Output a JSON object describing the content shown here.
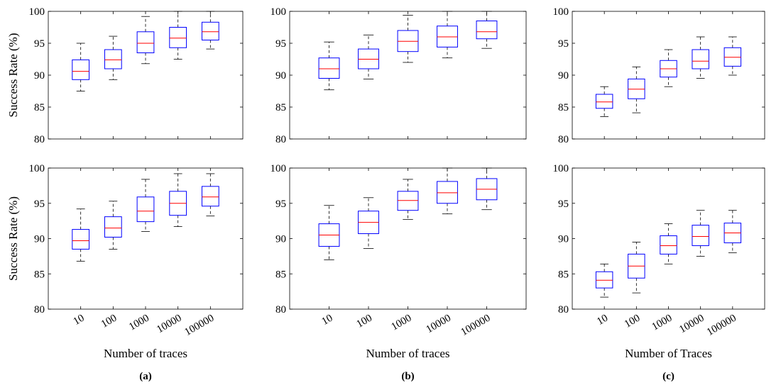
{
  "chart_data": [
    {
      "type": "box",
      "panel": "a-top",
      "categories": [
        "10",
        "100",
        "1000",
        "10000",
        "100000"
      ],
      "ylabel": "Success Rate (%)",
      "xlabel": "",
      "ylim": [
        80,
        100
      ],
      "yticks": [
        80,
        85,
        90,
        95,
        100
      ],
      "boxes": [
        {
          "min": 87.5,
          "q1": 89.3,
          "median": 90.6,
          "q3": 92.4,
          "max": 95.0
        },
        {
          "min": 89.3,
          "q1": 91.0,
          "median": 92.4,
          "q3": 94.0,
          "max": 96.1
        },
        {
          "min": 91.8,
          "q1": 93.5,
          "median": 95.0,
          "q3": 96.8,
          "max": 99.2
        },
        {
          "min": 92.5,
          "q1": 94.3,
          "median": 95.8,
          "q3": 97.5,
          "max": 100.0
        },
        {
          "min": 94.1,
          "q1": 95.5,
          "median": 96.8,
          "q3": 98.3,
          "max": 100.0
        }
      ]
    },
    {
      "type": "box",
      "panel": "b-top",
      "categories": [
        "10",
        "100",
        "1000",
        "10000",
        "100000"
      ],
      "ylabel": "",
      "xlabel": "",
      "ylim": [
        80,
        100
      ],
      "yticks": [
        80,
        85,
        90,
        95,
        100
      ],
      "boxes": [
        {
          "min": 87.7,
          "q1": 89.5,
          "median": 91.0,
          "q3": 92.7,
          "max": 95.2
        },
        {
          "min": 89.4,
          "q1": 91.0,
          "median": 92.5,
          "q3": 94.1,
          "max": 96.3
        },
        {
          "min": 92.0,
          "q1": 93.7,
          "median": 95.3,
          "q3": 97.0,
          "max": 99.4
        },
        {
          "min": 92.7,
          "q1": 94.4,
          "median": 96.0,
          "q3": 97.7,
          "max": 100.0
        },
        {
          "min": 94.2,
          "q1": 95.7,
          "median": 96.8,
          "q3": 98.5,
          "max": 100.0
        }
      ]
    },
    {
      "type": "box",
      "panel": "c-top",
      "categories": [
        "10",
        "100",
        "1000",
        "10000",
        "100000"
      ],
      "ylabel": "",
      "xlabel": "",
      "ylim": [
        80,
        100
      ],
      "yticks": [
        80,
        85,
        90,
        95,
        100
      ],
      "boxes": [
        {
          "min": 83.5,
          "q1": 84.8,
          "median": 85.8,
          "q3": 87.0,
          "max": 88.2
        },
        {
          "min": 84.1,
          "q1": 86.3,
          "median": 87.8,
          "q3": 89.4,
          "max": 91.3
        },
        {
          "min": 88.2,
          "q1": 89.7,
          "median": 91.0,
          "q3": 92.3,
          "max": 94.0
        },
        {
          "min": 89.5,
          "q1": 91.0,
          "median": 92.2,
          "q3": 94.0,
          "max": 96.0
        },
        {
          "min": 90.0,
          "q1": 91.4,
          "median": 92.8,
          "q3": 94.3,
          "max": 96.0
        }
      ]
    },
    {
      "type": "box",
      "panel": "a-bottom",
      "categories": [
        "10",
        "100",
        "1000",
        "10000",
        "100000"
      ],
      "ylabel": "Success Rate (%)",
      "xlabel": "Number of traces",
      "ylim": [
        80,
        100
      ],
      "yticks": [
        80,
        85,
        90,
        95,
        100
      ],
      "boxes": [
        {
          "min": 86.8,
          "q1": 88.5,
          "median": 89.7,
          "q3": 91.3,
          "max": 94.2
        },
        {
          "min": 88.5,
          "q1": 90.2,
          "median": 91.5,
          "q3": 93.1,
          "max": 95.3
        },
        {
          "min": 91.0,
          "q1": 92.4,
          "median": 93.9,
          "q3": 95.9,
          "max": 98.4
        },
        {
          "min": 91.7,
          "q1": 93.3,
          "median": 95.0,
          "q3": 96.7,
          "max": 99.2
        },
        {
          "min": 93.2,
          "q1": 94.6,
          "median": 95.9,
          "q3": 97.4,
          "max": 99.2
        }
      ]
    },
    {
      "type": "box",
      "panel": "b-bottom",
      "categories": [
        "10",
        "100",
        "1000",
        "10000",
        "100000"
      ],
      "ylabel": "",
      "xlabel": "Number of traces",
      "ylim": [
        80,
        100
      ],
      "yticks": [
        80,
        85,
        90,
        95,
        100
      ],
      "boxes": [
        {
          "min": 87.0,
          "q1": 88.9,
          "median": 90.5,
          "q3": 92.1,
          "max": 94.7
        },
        {
          "min": 88.6,
          "q1": 90.7,
          "median": 92.3,
          "q3": 93.9,
          "max": 95.8
        },
        {
          "min": 92.7,
          "q1": 94.0,
          "median": 95.4,
          "q3": 96.7,
          "max": 98.4
        },
        {
          "min": 93.5,
          "q1": 95.0,
          "median": 96.5,
          "q3": 98.1,
          "max": 100.0
        },
        {
          "min": 94.1,
          "q1": 95.5,
          "median": 97.0,
          "q3": 98.5,
          "max": 100.0
        }
      ]
    },
    {
      "type": "box",
      "panel": "c-bottom",
      "categories": [
        "10",
        "100",
        "1000",
        "10000",
        "100000"
      ],
      "ylabel": "",
      "xlabel": "Number of Traces",
      "ylim": [
        80,
        100
      ],
      "yticks": [
        80,
        85,
        90,
        95,
        100
      ],
      "boxes": [
        {
          "min": 81.7,
          "q1": 83.0,
          "median": 84.1,
          "q3": 85.3,
          "max": 86.4
        },
        {
          "min": 82.3,
          "q1": 84.4,
          "median": 86.1,
          "q3": 87.8,
          "max": 89.5
        },
        {
          "min": 86.4,
          "q1": 87.8,
          "median": 89.0,
          "q3": 90.4,
          "max": 92.1
        },
        {
          "min": 87.5,
          "q1": 89.0,
          "median": 90.3,
          "q3": 91.9,
          "max": 94.0
        },
        {
          "min": 88.0,
          "q1": 89.4,
          "median": 90.8,
          "q3": 92.2,
          "max": 94.0
        }
      ]
    }
  ],
  "captions": [
    "(a)",
    "(b)",
    "(c)"
  ],
  "colors": {
    "box": "#0000ff",
    "median": "#ff0000",
    "whisker": "#000000",
    "axis": "#000000"
  }
}
